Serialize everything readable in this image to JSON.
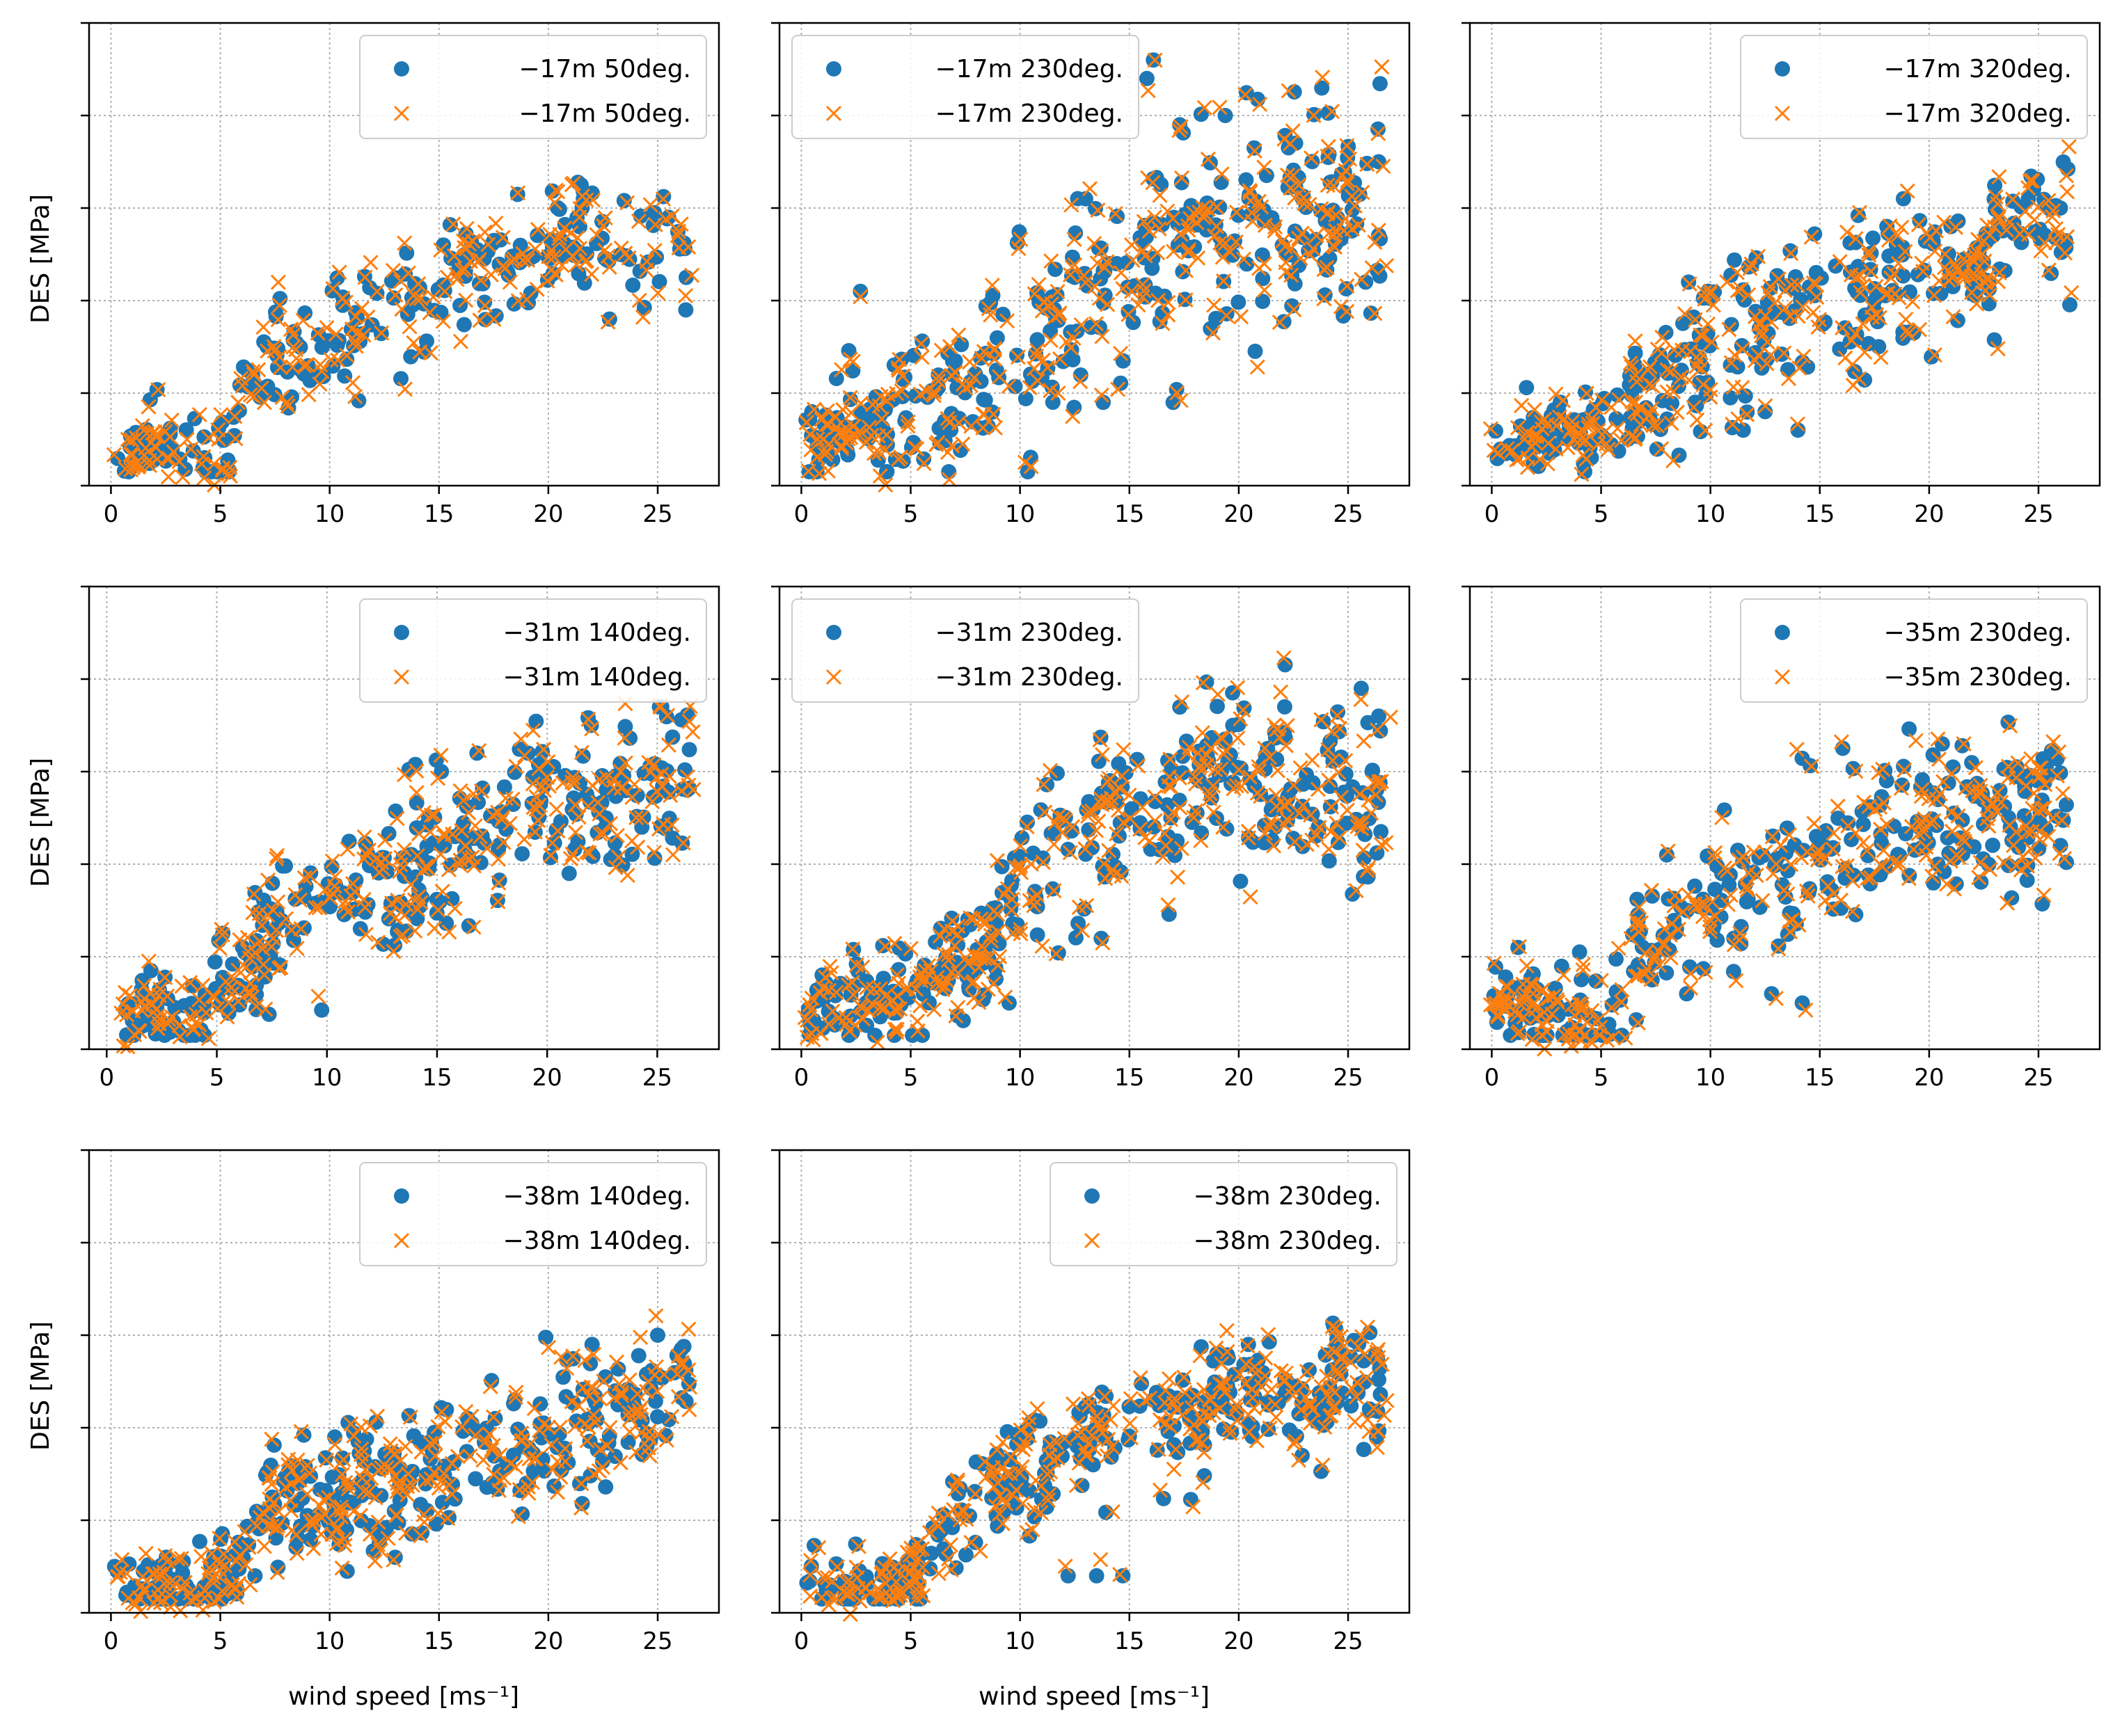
{
  "colors": {
    "series_a": "#1f77b4",
    "series_b": "#ff7f0e",
    "grid": "#b0b0b0",
    "frame": "#000000"
  },
  "figure": {
    "ylabel": "DES [MPa]",
    "xlabel": "wind speed [ms⁻¹]"
  },
  "chart_data": [
    {
      "type": "scatter",
      "title": "",
      "xlabel": "",
      "ylabel": "DES [MPa]",
      "xlim": [
        -1,
        27.8
      ],
      "ylim": [
        0,
        5
      ],
      "xticks": [
        "0",
        "5",
        "10",
        "15",
        "20",
        "25"
      ],
      "legend": [
        "−17m 50deg.",
        "−17m 50deg."
      ],
      "legend_loc": "top-right",
      "grid": true,
      "y_tick_labels": "none",
      "x_min": 0.3,
      "x_max": 26.5,
      "trend": [
        [
          0.3,
          0.4
        ],
        [
          5.5,
          0.35
        ],
        [
          6,
          1.3
        ],
        [
          10,
          1.7
        ],
        [
          15,
          2.1
        ],
        [
          20,
          2.5
        ],
        [
          26,
          2.6
        ]
      ],
      "spread": 0.35,
      "n_points": 230,
      "seed": 11,
      "outliers": [
        [
          21.6,
          3.1
        ],
        [
          25.5,
          2.9
        ],
        [
          21.5,
          3.25
        ],
        [
          15.2,
          2.6
        ],
        [
          22.8,
          1.8
        ]
      ]
    },
    {
      "type": "scatter",
      "title": "",
      "xlabel": "",
      "ylabel": "",
      "xlim": [
        -1,
        27.8
      ],
      "ylim": [
        0,
        5
      ],
      "xticks": [
        "0",
        "5",
        "10",
        "15",
        "20",
        "25"
      ],
      "legend": [
        "−17m 230deg.",
        "−17m 230deg."
      ],
      "legend_loc": "top-left",
      "grid": true,
      "y_tick_labels": "none",
      "x_min": 0.1,
      "x_max": 26.5,
      "trend": [
        [
          0.1,
          0.5
        ],
        [
          5,
          0.8
        ],
        [
          10,
          1.6
        ],
        [
          15,
          2.3
        ],
        [
          20,
          2.8
        ],
        [
          26,
          3.1
        ]
      ],
      "spread": 0.55,
      "n_points": 320,
      "seed": 23,
      "outliers": [
        [
          15.8,
          4.4
        ],
        [
          17.3,
          3.9
        ],
        [
          16.1,
          4.6
        ],
        [
          22.6,
          3.7
        ],
        [
          26.4,
          3.5
        ],
        [
          25.8,
          2.2
        ],
        [
          17.0,
          0.9
        ],
        [
          13.8,
          0.9
        ],
        [
          13.0,
          3.1
        ],
        [
          2.7,
          2.1
        ],
        [
          25.0,
          3.2
        ]
      ]
    },
    {
      "type": "scatter",
      "title": "",
      "xlabel": "",
      "ylabel": "",
      "xlim": [
        -1,
        27.8
      ],
      "ylim": [
        0,
        5
      ],
      "xticks": [
        "0",
        "5",
        "10",
        "15",
        "20",
        "25"
      ],
      "legend": [
        "−17m 320deg.",
        "−17m 320deg."
      ],
      "legend_loc": "top-right",
      "grid": true,
      "y_tick_labels": "none",
      "x_min": 0.1,
      "x_max": 26.5,
      "trend": [
        [
          0.1,
          0.4
        ],
        [
          5,
          0.6
        ],
        [
          10,
          1.5
        ],
        [
          15,
          1.9
        ],
        [
          20,
          2.2
        ],
        [
          26,
          2.9
        ]
      ],
      "spread": 0.4,
      "n_points": 300,
      "seed": 37,
      "outliers": [
        [
          14,
          0.6
        ],
        [
          11.5,
          0.6
        ],
        [
          12.5,
          0.8
        ],
        [
          21,
          2.8
        ],
        [
          9,
          2.2
        ],
        [
          26,
          3
        ]
      ]
    },
    {
      "type": "scatter",
      "title": "",
      "xlabel": "",
      "ylabel": "DES [MPa]",
      "xlim": [
        -0.8,
        27.8
      ],
      "ylim": [
        0,
        5
      ],
      "xticks": [
        "0",
        "5",
        "10",
        "15",
        "20",
        "25"
      ],
      "legend": [
        "−31m 140deg.",
        "−31m 140deg."
      ],
      "legend_loc": "top-right",
      "grid": true,
      "y_tick_labels": "none",
      "x_min": 0.6,
      "x_max": 26.5,
      "trend": [
        [
          0.6,
          0.4
        ],
        [
          3.5,
          0.35
        ],
        [
          5,
          0.7
        ],
        [
          10,
          1.5
        ],
        [
          15,
          2.0
        ],
        [
          20,
          2.6
        ],
        [
          26,
          2.9
        ]
      ],
      "spread": 0.45,
      "n_points": 290,
      "seed": 41,
      "outliers": [
        [
          25.1,
          3.7
        ],
        [
          22,
          3.5
        ],
        [
          15.2,
          3.0
        ],
        [
          21,
          1.9
        ],
        [
          24.3,
          2.4
        ]
      ]
    },
    {
      "type": "scatter",
      "title": "",
      "xlabel": "",
      "ylabel": "",
      "xlim": [
        -1,
        27.8
      ],
      "ylim": [
        0,
        5
      ],
      "xticks": [
        "0",
        "5",
        "10",
        "15",
        "20",
        "25"
      ],
      "legend": [
        "−31m 230deg.",
        "−31m 230deg."
      ],
      "legend_loc": "top-left",
      "grid": true,
      "y_tick_labels": "none",
      "x_min": 0.1,
      "x_max": 26.5,
      "trend": [
        [
          0.1,
          0.5
        ],
        [
          5,
          0.6
        ],
        [
          8,
          0.9
        ],
        [
          10,
          1.9
        ],
        [
          15,
          2.4
        ],
        [
          20,
          3.1
        ],
        [
          26,
          2.6
        ]
      ],
      "spread": 0.45,
      "n_points": 320,
      "seed": 53,
      "outliers": [
        [
          25.6,
          3.9
        ],
        [
          26.4,
          3.6
        ],
        [
          22.1,
          3.7
        ],
        [
          9.5,
          0.5
        ],
        [
          25.6,
          2.4
        ],
        [
          26.3,
          2.8
        ]
      ]
    },
    {
      "type": "scatter",
      "title": "",
      "xlabel": "",
      "ylabel": "",
      "xlim": [
        -1,
        27.8
      ],
      "ylim": [
        0,
        5
      ],
      "xticks": [
        "0",
        "5",
        "10",
        "15",
        "20",
        "25"
      ],
      "legend": [
        "−35m 230deg.",
        "−35m 230deg."
      ],
      "legend_loc": "top-right",
      "grid": true,
      "y_tick_labels": "none",
      "x_min": 0.1,
      "x_max": 26.3,
      "trend": [
        [
          0.1,
          0.45
        ],
        [
          5,
          0.3
        ],
        [
          6,
          0.8
        ],
        [
          10,
          1.5
        ],
        [
          15,
          2.1
        ],
        [
          20,
          2.5
        ],
        [
          26,
          2.5
        ]
      ],
      "spread": 0.4,
      "n_points": 300,
      "seed": 67,
      "outliers": [
        [
          1.2,
          1.1
        ],
        [
          20.6,
          3.3
        ],
        [
          12.8,
          0.6
        ],
        [
          14.2,
          0.5
        ],
        [
          8,
          2.1
        ]
      ]
    },
    {
      "type": "scatter",
      "title": "",
      "xlabel": "wind speed [ms⁻¹]",
      "ylabel": "DES [MPa]",
      "xlim": [
        -1,
        27.8
      ],
      "ylim": [
        0,
        5
      ],
      "xticks": [
        "0",
        "5",
        "10",
        "15",
        "20",
        "25"
      ],
      "legend": [
        "−38m 140deg.",
        "−38m 140deg."
      ],
      "legend_loc": "top-right",
      "grid": true,
      "y_tick_labels": "none",
      "x_min": 0.1,
      "x_max": 26.5,
      "trend": [
        [
          0.1,
          0.3
        ],
        [
          6,
          0.35
        ],
        [
          7,
          1.2
        ],
        [
          10,
          1.3
        ],
        [
          15,
          1.5
        ],
        [
          20,
          1.9
        ],
        [
          26,
          2.4
        ]
      ],
      "spread": 0.35,
      "n_points": 310,
      "seed": 79,
      "outliers": [
        [
          25,
          3.0
        ],
        [
          22,
          2.9
        ],
        [
          10.8,
          0.45
        ],
        [
          13,
          0.6
        ],
        [
          24.5,
          1.8
        ]
      ]
    },
    {
      "type": "scatter",
      "title": "",
      "xlabel": "wind speed [ms⁻¹]",
      "ylabel": "",
      "xlim": [
        -1,
        27.8
      ],
      "ylim": [
        0,
        5
      ],
      "xticks": [
        "0",
        "5",
        "10",
        "15",
        "20",
        "25"
      ],
      "legend": [
        "−38m 230deg.",
        "−38m 230deg."
      ],
      "legend_loc": "top-right",
      "grid": true,
      "y_tick_labels": "none",
      "x_min": 0.1,
      "x_max": 26.5,
      "trend": [
        [
          0.1,
          0.25
        ],
        [
          5,
          0.35
        ],
        [
          7,
          1.0
        ],
        [
          10,
          1.5
        ],
        [
          15,
          1.9
        ],
        [
          20,
          2.3
        ],
        [
          26,
          2.4
        ]
      ],
      "spread": 0.35,
      "n_points": 300,
      "seed": 97,
      "outliers": [
        [
          24.6,
          2.8
        ],
        [
          12.2,
          0.4
        ],
        [
          13.5,
          0.4
        ],
        [
          14.7,
          0.4
        ],
        [
          22.9,
          1.7
        ],
        [
          26.3,
          1.9
        ]
      ]
    }
  ]
}
